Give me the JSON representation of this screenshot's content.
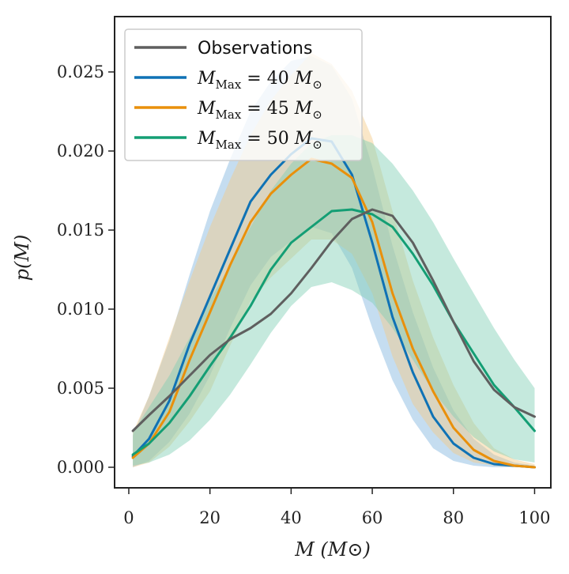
{
  "chart_data": {
    "type": "line",
    "xlabel": "M (M⊙)",
    "ylabel": "p(M)",
    "xlim": [
      -3.5,
      104
    ],
    "ylim": [
      -0.0013,
      0.0285
    ],
    "xticks": [
      0,
      20,
      40,
      60,
      80,
      100
    ],
    "xtick_labels": [
      "0",
      "20",
      "40",
      "60",
      "80",
      "100"
    ],
    "yticks": [
      0.0,
      0.005,
      0.01,
      0.015,
      0.02,
      0.025
    ],
    "ytick_labels": [
      "0.000",
      "0.005",
      "0.010",
      "0.015",
      "0.020",
      "0.025"
    ],
    "grid": false,
    "legend_position": "top-left",
    "x": [
      1,
      5,
      10,
      15,
      20,
      25,
      30,
      35,
      40,
      45,
      50,
      55,
      60,
      65,
      70,
      75,
      80,
      85,
      90,
      95,
      100
    ],
    "series": [
      {
        "name": "Observations",
        "color": "#5f5f5f",
        "values": [
          0.0023,
          0.0033,
          0.0045,
          0.0058,
          0.0071,
          0.0081,
          0.0088,
          0.0097,
          0.011,
          0.0126,
          0.0143,
          0.0157,
          0.0163,
          0.0159,
          0.0142,
          0.0118,
          0.0092,
          0.0067,
          0.0049,
          0.0038,
          0.0032
        ],
        "band_lower": [],
        "band_upper": []
      },
      {
        "name": "M_Max = 40 M⊙",
        "legend_main": "M",
        "legend_sub": "Max",
        "legend_rest": " = 40 M",
        "color": "#0f72b5",
        "band_color": "#7fb3dd",
        "values": [
          0.0007,
          0.0018,
          0.0042,
          0.0078,
          0.0108,
          0.0138,
          0.0168,
          0.0185,
          0.0198,
          0.0208,
          0.0206,
          0.0185,
          0.0142,
          0.0095,
          0.006,
          0.0032,
          0.0015,
          0.0006,
          0.0002,
          0.0001,
          0.0
        ],
        "band_lower": [
          0.0,
          0.0004,
          0.0016,
          0.0034,
          0.0058,
          0.0088,
          0.0115,
          0.0133,
          0.0143,
          0.0152,
          0.0148,
          0.0126,
          0.0088,
          0.0055,
          0.003,
          0.0012,
          0.0004,
          0.0001,
          0.0,
          0.0,
          0.0
        ],
        "band_upper": [
          0.002,
          0.0045,
          0.008,
          0.0122,
          0.0162,
          0.0195,
          0.0225,
          0.0244,
          0.0257,
          0.026,
          0.0254,
          0.0233,
          0.019,
          0.014,
          0.0098,
          0.0063,
          0.0036,
          0.0018,
          0.0008,
          0.0003,
          0.0001
        ]
      },
      {
        "name": "M_Max = 45 M⊙",
        "legend_main": "M",
        "legend_sub": "Max",
        "legend_rest": " = 45 M",
        "color": "#e9900b",
        "band_color": "#f3ca86",
        "values": [
          0.0006,
          0.0015,
          0.0035,
          0.0068,
          0.0098,
          0.0128,
          0.0155,
          0.0173,
          0.0185,
          0.0195,
          0.0192,
          0.0183,
          0.0155,
          0.011,
          0.0075,
          0.0048,
          0.0025,
          0.0011,
          0.0004,
          0.0001,
          0.0
        ],
        "band_lower": [
          0.0,
          0.0003,
          0.0013,
          0.0029,
          0.0048,
          0.0077,
          0.0105,
          0.012,
          0.0132,
          0.0144,
          0.0144,
          0.0135,
          0.011,
          0.007,
          0.004,
          0.0022,
          0.0009,
          0.0003,
          0.0001,
          0.0,
          0.0
        ],
        "band_upper": [
          0.0022,
          0.0045,
          0.0082,
          0.0118,
          0.0152,
          0.0182,
          0.021,
          0.0232,
          0.0248,
          0.0262,
          0.0255,
          0.0238,
          0.0208,
          0.0162,
          0.0118,
          0.0082,
          0.0052,
          0.0028,
          0.0012,
          0.0005,
          0.0002
        ]
      },
      {
        "name": "M_Max = 50 M⊙",
        "legend_main": "M",
        "legend_sub": "Max",
        "legend_rest": " = 50 M",
        "color": "#149e74",
        "band_color": "#7fcfb4",
        "values": [
          0.0008,
          0.0015,
          0.0028,
          0.0045,
          0.0064,
          0.0082,
          0.0102,
          0.0125,
          0.0142,
          0.0152,
          0.0162,
          0.0163,
          0.016,
          0.0152,
          0.0135,
          0.0115,
          0.0092,
          0.0072,
          0.0052,
          0.0038,
          0.0023
        ],
        "band_lower": [
          0.0001,
          0.0003,
          0.0008,
          0.0017,
          0.003,
          0.0046,
          0.0065,
          0.0085,
          0.0102,
          0.0114,
          0.0117,
          0.0112,
          0.0104,
          0.0088,
          0.0068,
          0.0048,
          0.0032,
          0.0019,
          0.001,
          0.0005,
          0.0003
        ],
        "band_upper": [
          0.0022,
          0.0038,
          0.0058,
          0.0082,
          0.0106,
          0.0128,
          0.0152,
          0.0175,
          0.0192,
          0.0205,
          0.021,
          0.021,
          0.0205,
          0.0192,
          0.0175,
          0.0155,
          0.0132,
          0.011,
          0.0088,
          0.0068,
          0.005
        ]
      }
    ]
  }
}
